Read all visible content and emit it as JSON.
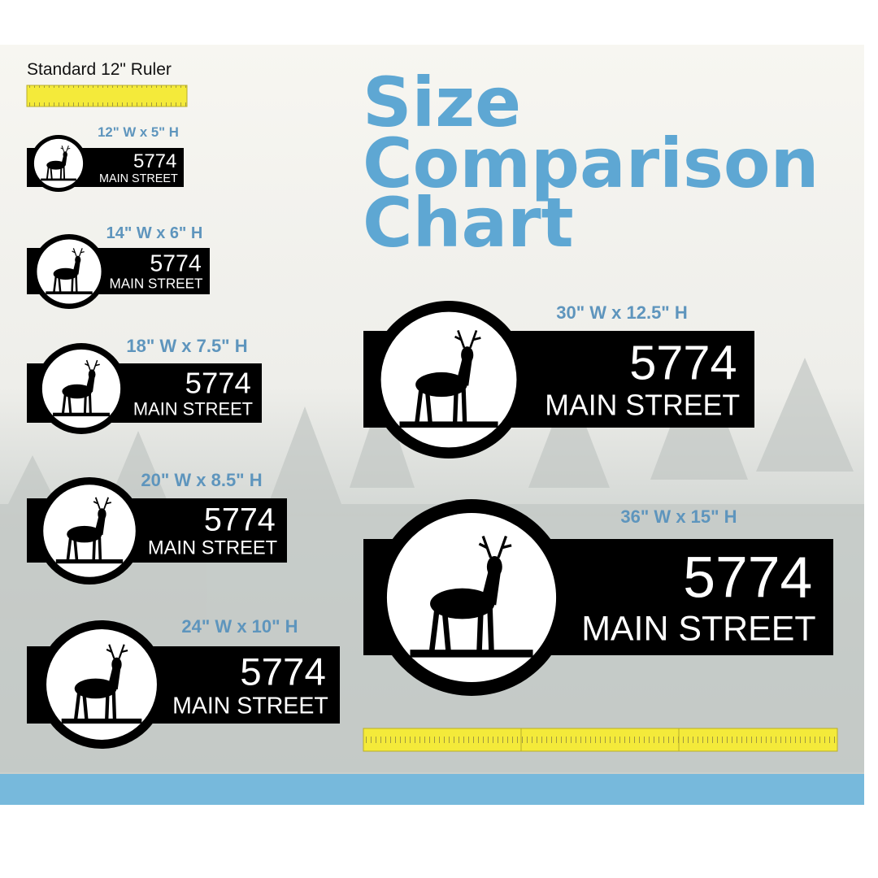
{
  "ruler_label": "Standard 12\" Ruler",
  "title": [
    "Size",
    "Comparison",
    "Chart"
  ],
  "signs": [
    {
      "size": "12\" W x 5\" H",
      "number": "5774",
      "street": "MAIN STREET"
    },
    {
      "size": "14\" W x 6\" H",
      "number": "5774",
      "street": "MAIN STREET"
    },
    {
      "size": "18\" W x 7.5\" H",
      "number": "5774",
      "street": "MAIN STREET"
    },
    {
      "size": "20\" W x 8.5\" H",
      "number": "5774",
      "street": "MAIN STREET"
    },
    {
      "size": "24\" W x 10\" H",
      "number": "5774",
      "street": "MAIN STREET"
    },
    {
      "size": "30\" W x 12.5\" H",
      "number": "5774",
      "street": "MAIN STREET"
    },
    {
      "size": "36\" W x 15\" H",
      "number": "5774",
      "street": "MAIN STREET"
    }
  ]
}
